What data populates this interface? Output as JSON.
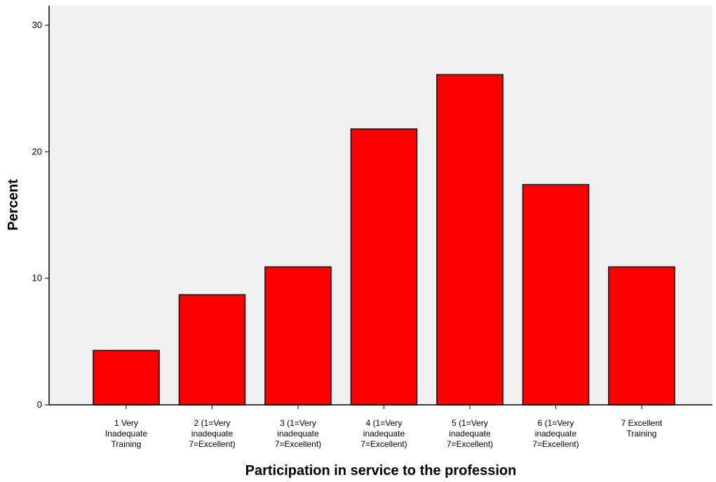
{
  "chart_data": {
    "type": "bar",
    "title": "",
    "xlabel": "Participation in service to the profession",
    "ylabel": "Percent",
    "ylim": [
      0,
      30
    ],
    "yticks": [
      0,
      10,
      20,
      30
    ],
    "grid": false,
    "categories": [
      [
        "1 Very",
        "Inadequate",
        "Training"
      ],
      [
        "2 (1=Very",
        "inadequate",
        "7=Excellent)"
      ],
      [
        "3 (1=Very",
        "inadequate",
        "7=Excellent)"
      ],
      [
        "4 (1=Very",
        "inadequate",
        "7=Excellent)"
      ],
      [
        "5 (1=Very",
        "inadequate",
        "7=Excellent)"
      ],
      [
        "6 (1=Very",
        "inadequate",
        "7=Excellent)"
      ],
      [
        "7 Excellent",
        "Training"
      ]
    ],
    "values": [
      4.3,
      8.7,
      10.9,
      21.8,
      26.1,
      17.4,
      10.9
    ],
    "colors": {
      "bar_fill": "#ff0000",
      "bar_stroke": "#000000",
      "plot_background": "#f0f0f0",
      "axis": "#000000"
    }
  }
}
